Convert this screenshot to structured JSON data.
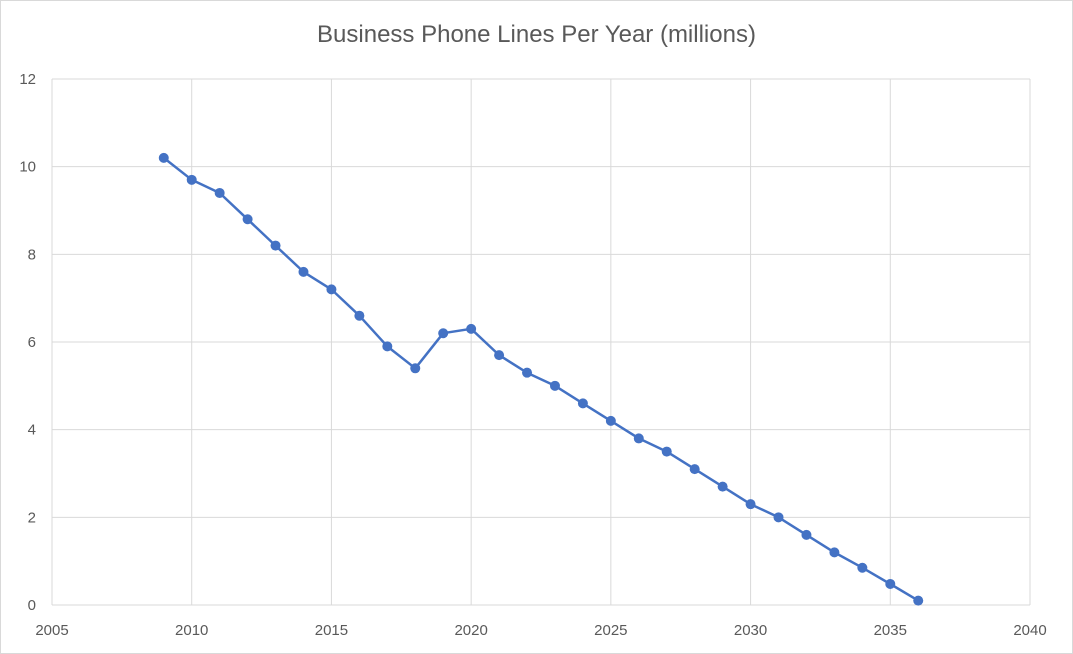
{
  "chart_data": {
    "type": "scatter",
    "title": "Business Phone Lines Per Year (millions)",
    "xlabel": "",
    "ylabel": "",
    "xlim": [
      2005,
      2040
    ],
    "ylim": [
      0,
      12
    ],
    "x_ticks": [
      2005,
      2010,
      2015,
      2020,
      2025,
      2030,
      2035,
      2040
    ],
    "y_ticks": [
      0,
      2,
      4,
      6,
      8,
      10,
      12
    ],
    "grid": true,
    "legend": "none",
    "color": "#4472c4",
    "series": [
      {
        "x": [
          2009,
          2010,
          2011,
          2012,
          2013,
          2014,
          2015,
          2016,
          2017,
          2018,
          2019,
          2020,
          2021,
          2022,
          2023,
          2024,
          2025,
          2026,
          2027,
          2028,
          2029,
          2030,
          2031,
          2032,
          2033,
          2034,
          2035,
          2036
        ],
        "y": [
          10.2,
          9.7,
          9.4,
          8.8,
          8.2,
          7.6,
          7.2,
          6.6,
          5.9,
          5.4,
          6.2,
          6.3,
          5.7,
          5.3,
          5.0,
          4.6,
          4.2,
          3.8,
          3.5,
          3.1,
          2.7,
          2.3,
          2.0,
          1.6,
          1.2,
          0.85,
          0.48,
          0.1
        ]
      }
    ]
  }
}
